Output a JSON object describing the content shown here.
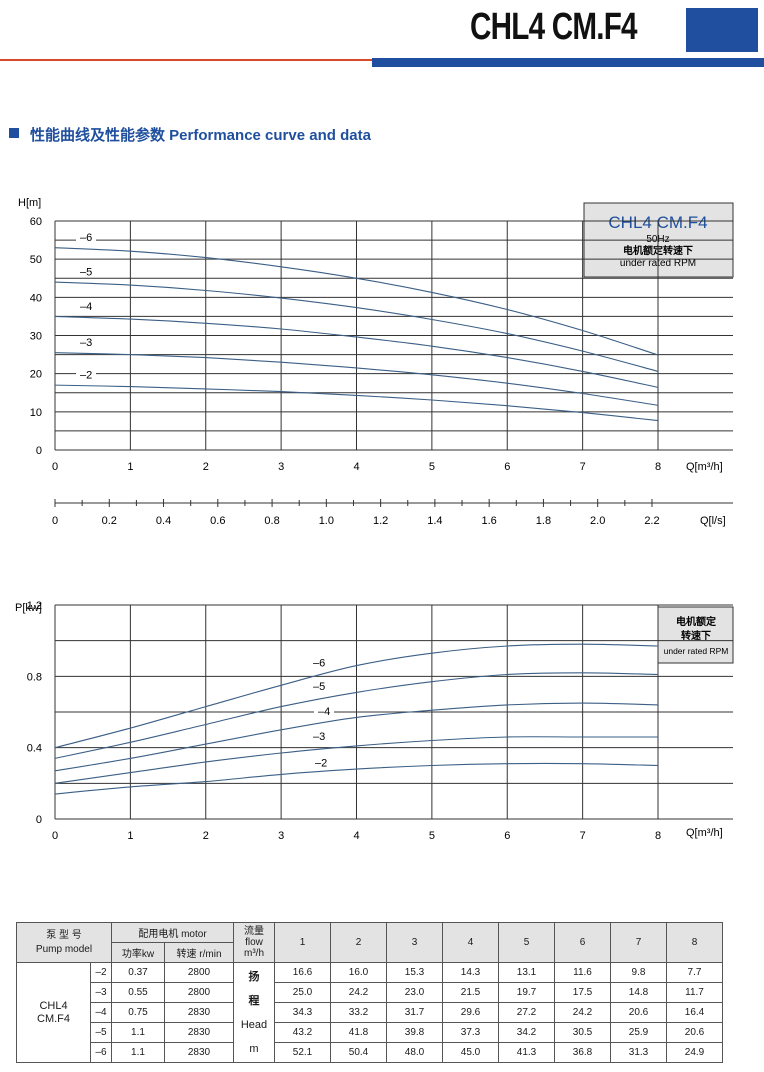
{
  "header": {
    "title": "CHL4 CM.F4"
  },
  "section": {
    "title": "性能曲线及性能参数  Performance curve and data"
  },
  "head_chart": {
    "box": {
      "model": "CHL4  CM.F4",
      "freq": "50Hz",
      "cn": "电机额定转速下",
      "en": "under rated RPM"
    },
    "y_title": "H[m]",
    "x_title": "Q[m³/h]",
    "x2_title": "Q[l/s]"
  },
  "power_chart": {
    "box": {
      "cn1": "电机额定",
      "cn2": "转速下",
      "en": "under rated RPM"
    },
    "y_title": "P[kw]",
    "x_title": "Q[m³/h]"
  },
  "chart_data": [
    {
      "type": "line",
      "xlabel": "Q[m³/h]",
      "ylabel": "H[m]",
      "xlim": [
        0,
        8
      ],
      "ylim": [
        0,
        60
      ],
      "x_ticks": [
        "0",
        "1",
        "2",
        "3",
        "4",
        "5",
        "6",
        "7",
        "8"
      ],
      "y_ticks": [
        "0",
        "10",
        "20",
        "30",
        "40",
        "50",
        "60"
      ],
      "secondary_x": {
        "label": "Q[l/s]",
        "ticks": [
          "0",
          "0.2",
          "0.4",
          "0.6",
          "0.8",
          "1.0",
          "1.2",
          "1.4",
          "1.6",
          "1.8",
          "2.0",
          "2.2"
        ]
      },
      "x": [
        0,
        1,
        2,
        3,
        4,
        5,
        6,
        7,
        8
      ],
      "series": [
        {
          "name": "–6",
          "values": [
            53,
            52.1,
            50.4,
            48.0,
            45.0,
            41.3,
            36.8,
            31.3,
            24.9
          ]
        },
        {
          "name": "–5",
          "values": [
            44,
            43.2,
            41.8,
            39.8,
            37.3,
            34.2,
            30.5,
            25.9,
            20.6
          ]
        },
        {
          "name": "–4",
          "values": [
            35,
            34.3,
            33.2,
            31.7,
            29.6,
            27.2,
            24.2,
            20.6,
            16.4
          ]
        },
        {
          "name": "–3",
          "values": [
            25.5,
            25.0,
            24.2,
            23.0,
            21.5,
            19.7,
            17.5,
            14.8,
            11.7
          ]
        },
        {
          "name": "–2",
          "values": [
            17,
            16.6,
            16.0,
            15.3,
            14.3,
            13.1,
            11.6,
            9.8,
            7.7
          ]
        }
      ]
    },
    {
      "type": "line",
      "xlabel": "Q[m³/h]",
      "ylabel": "P[kw]",
      "xlim": [
        0,
        8
      ],
      "ylim": [
        0,
        1.2
      ],
      "x_ticks": [
        "0",
        "1",
        "2",
        "3",
        "4",
        "5",
        "6",
        "7",
        "8"
      ],
      "y_ticks": [
        "0",
        "0.4",
        "0.8",
        "1.2"
      ],
      "x": [
        0,
        1,
        2,
        3,
        4,
        5,
        6,
        7,
        8
      ],
      "series": [
        {
          "name": "–6",
          "values": [
            0.4,
            0.51,
            0.63,
            0.75,
            0.86,
            0.93,
            0.97,
            0.98,
            0.97
          ]
        },
        {
          "name": "–5",
          "values": [
            0.34,
            0.43,
            0.53,
            0.63,
            0.71,
            0.77,
            0.81,
            0.82,
            0.81
          ]
        },
        {
          "name": "–4",
          "values": [
            0.27,
            0.34,
            0.42,
            0.5,
            0.57,
            0.61,
            0.64,
            0.65,
            0.64
          ]
        },
        {
          "name": "–3",
          "values": [
            0.2,
            0.26,
            0.32,
            0.37,
            0.41,
            0.44,
            0.46,
            0.46,
            0.46
          ]
        },
        {
          "name": "–2",
          "values": [
            0.14,
            0.18,
            0.21,
            0.25,
            0.28,
            0.3,
            0.31,
            0.31,
            0.3
          ]
        }
      ]
    }
  ],
  "table": {
    "h_pump": "泵 型 号",
    "h_pump_en": "Pump model",
    "h_motor": "配用电机 motor",
    "h_power": "功率kw",
    "h_speed": "转速  r/min",
    "h_flow": "流量",
    "h_flow_en": "flow",
    "h_flow_unit": "m³/h",
    "flows": [
      "1",
      "2",
      "3",
      "4",
      "5",
      "6",
      "7",
      "8"
    ],
    "model": "CHL4\nCM.F4",
    "head_cn1": "扬",
    "head_cn2": "程",
    "head_en": "Head",
    "head_unit": "m",
    "rows": [
      {
        "stage": "–2",
        "power": "0.37",
        "speed": "2800",
        "vals": [
          "16.6",
          "16.0",
          "15.3",
          "14.3",
          "13.1",
          "11.6",
          "9.8",
          "7.7"
        ]
      },
      {
        "stage": "–3",
        "power": "0.55",
        "speed": "2800",
        "vals": [
          "25.0",
          "24.2",
          "23.0",
          "21.5",
          "19.7",
          "17.5",
          "14.8",
          "11.7"
        ]
      },
      {
        "stage": "–4",
        "power": "0.75",
        "speed": "2830",
        "vals": [
          "34.3",
          "33.2",
          "31.7",
          "29.6",
          "27.2",
          "24.2",
          "20.6",
          "16.4"
        ]
      },
      {
        "stage": "–5",
        "power": "1.1",
        "speed": "2830",
        "vals": [
          "43.2",
          "41.8",
          "39.8",
          "37.3",
          "34.2",
          "30.5",
          "25.9",
          "20.6"
        ]
      },
      {
        "stage": "–6",
        "power": "1.1",
        "speed": "2830",
        "vals": [
          "52.1",
          "50.4",
          "48.0",
          "45.0",
          "41.3",
          "36.8",
          "31.3",
          "24.9"
        ]
      }
    ]
  }
}
